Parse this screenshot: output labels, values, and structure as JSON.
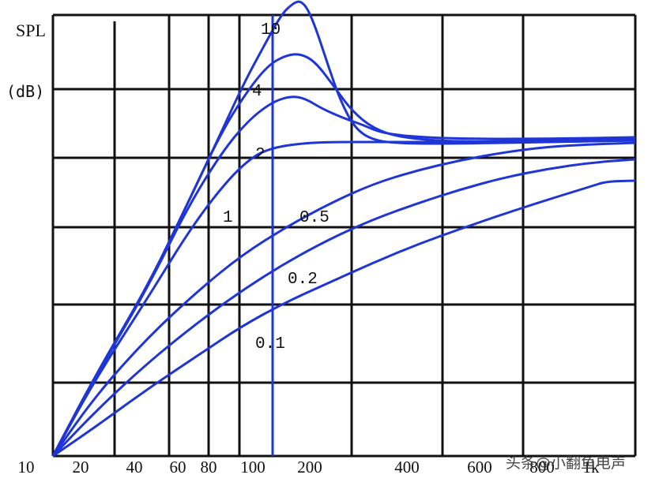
{
  "chart_data": {
    "type": "line",
    "title": "",
    "ylabel_line1": "SPL",
    "ylabel_line2": "(dB)",
    "xlabel": "",
    "grid": true,
    "x_tick_labels": [
      "10",
      "20",
      "40",
      "60",
      "80",
      "100",
      "200",
      "400",
      "600",
      "800",
      "1k"
    ],
    "series": [
      {
        "label": "10",
        "color": "#1f35d6",
        "points": [
          [
            0,
            0
          ],
          [
            60,
            105
          ],
          [
            130,
            215
          ],
          [
            185,
            320
          ],
          [
            230,
            408
          ],
          [
            262,
            472
          ],
          [
            290,
            520
          ],
          [
            314,
            560
          ],
          [
            330,
            574
          ],
          [
            340,
            577
          ],
          [
            350,
            567
          ],
          [
            362,
            540
          ],
          [
            378,
            495
          ],
          [
            395,
            450
          ],
          [
            415,
            415
          ],
          [
            440,
            400
          ],
          [
            480,
            396
          ],
          [
            560,
            396
          ],
          [
            680,
            398
          ],
          [
            800,
            400
          ]
        ]
      },
      {
        "label": "4",
        "color": "#1f35d6",
        "points": [
          [
            0,
            0
          ],
          [
            60,
            105
          ],
          [
            130,
            215
          ],
          [
            185,
            320
          ],
          [
            230,
            408
          ],
          [
            265,
            460
          ],
          [
            295,
            495
          ],
          [
            320,
            508
          ],
          [
            340,
            510
          ],
          [
            360,
            500
          ],
          [
            385,
            470
          ],
          [
            410,
            438
          ],
          [
            440,
            415
          ],
          [
            480,
            403
          ],
          [
            560,
            398
          ],
          [
            680,
            400
          ],
          [
            800,
            402
          ]
        ]
      },
      {
        "label": "2",
        "color": "#1f35d6",
        "points": [
          [
            0,
            0
          ],
          [
            60,
            103
          ],
          [
            130,
            213
          ],
          [
            185,
            315
          ],
          [
            232,
            385
          ],
          [
            268,
            425
          ],
          [
            300,
            448
          ],
          [
            325,
            456
          ],
          [
            345,
            454
          ],
          [
            370,
            440
          ],
          [
            400,
            428
          ],
          [
            425,
            420
          ],
          [
            450,
            410
          ],
          [
            490,
            405
          ],
          [
            560,
            402
          ],
          [
            680,
            402
          ],
          [
            800,
            404
          ]
        ]
      },
      {
        "label": "1",
        "color": "#1f35d6",
        "points": [
          [
            0,
            0
          ],
          [
            60,
            100
          ],
          [
            130,
            200
          ],
          [
            190,
            290
          ],
          [
            240,
            350
          ],
          [
            275,
            380
          ],
          [
            300,
            390
          ],
          [
            330,
            395
          ],
          [
            370,
            398
          ],
          [
            450,
            398
          ],
          [
            560,
            398
          ],
          [
            680,
            398
          ],
          [
            800,
            400
          ]
        ]
      },
      {
        "label": "0.5",
        "color": "#1f35d6",
        "points": [
          [
            0,
            0
          ],
          [
            60,
            78
          ],
          [
            130,
            150
          ],
          [
            200,
            210
          ],
          [
            260,
            255
          ],
          [
            320,
            290
          ],
          [
            380,
            320
          ],
          [
            440,
            345
          ],
          [
            500,
            362
          ],
          [
            560,
            375
          ],
          [
            620,
            385
          ],
          [
            680,
            392
          ],
          [
            740,
            395
          ],
          [
            800,
            397
          ]
        ]
      },
      {
        "label": "0.2",
        "color": "#1f35d6",
        "points": [
          [
            0,
            0
          ],
          [
            60,
            58
          ],
          [
            130,
            118
          ],
          [
            200,
            170
          ],
          [
            260,
            210
          ],
          [
            320,
            245
          ],
          [
            380,
            275
          ],
          [
            440,
            300
          ],
          [
            500,
            320
          ],
          [
            560,
            338
          ],
          [
            620,
            353
          ],
          [
            680,
            364
          ],
          [
            740,
            372
          ],
          [
            800,
            376
          ]
        ]
      },
      {
        "label": "0.1",
        "color": "#1f35d6",
        "points": [
          [
            0,
            0
          ],
          [
            60,
            38
          ],
          [
            130,
            85
          ],
          [
            200,
            128
          ],
          [
            260,
            165
          ],
          [
            320,
            195
          ],
          [
            380,
            220
          ],
          [
            440,
            245
          ],
          [
            500,
            268
          ],
          [
            560,
            288
          ],
          [
            620,
            307
          ],
          [
            680,
            325
          ],
          [
            740,
            342
          ],
          [
            760,
            348
          ],
          [
            800,
            349
          ]
        ]
      }
    ]
  },
  "watermark": "头条@小翻鱼电声"
}
